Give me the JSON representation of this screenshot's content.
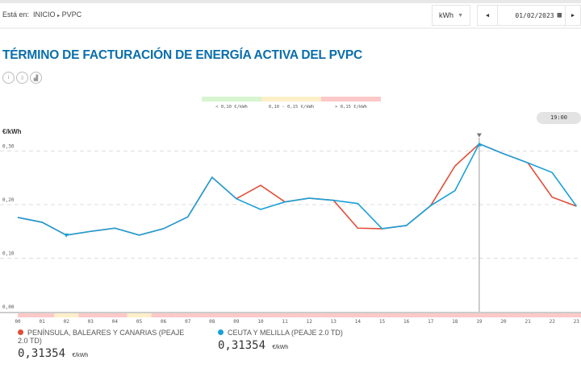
{
  "breadcrumb": {
    "prefix": "Está en:",
    "items": [
      "INICIO",
      "PVPC"
    ],
    "sep": "▸"
  },
  "unit_select": {
    "value": "kWh"
  },
  "date_picker": {
    "value": "01/02/2023"
  },
  "title": "TÉRMINO DE FACTURACIÓN DE ENERGÍA ACTIVA DEL PVPC",
  "color_legend": [
    {
      "label": "< 0,10 €/kWh",
      "color": "#d6f5d0"
    },
    {
      "label": "0,10 - 0,15 €/kWh",
      "color": "#fdefc7"
    },
    {
      "label": "> 0,15 €/kWh",
      "color": "#fcc8c8"
    }
  ],
  "selected_time": "19:00",
  "chart_data": {
    "type": "line",
    "ylabel": "€/kWh",
    "ylim": [
      0,
      0.33
    ],
    "yticks": [
      "0,00",
      "0,10",
      "0,20",
      "0,30"
    ],
    "ytick_values": [
      0,
      0.1,
      0.2,
      0.3
    ],
    "categories": [
      "00",
      "01",
      "02",
      "03",
      "04",
      "05",
      "06",
      "07",
      "08",
      "09",
      "10",
      "11",
      "12",
      "13",
      "14",
      "15",
      "16",
      "17",
      "18",
      "19",
      "20",
      "21",
      "22",
      "23"
    ],
    "band_levels": [
      "high",
      "high",
      "mid",
      "high",
      "high",
      "mid",
      "high",
      "high",
      "high",
      "high",
      "high",
      "high",
      "high",
      "high",
      "high",
      "high",
      "high",
      "high",
      "high",
      "high",
      "high",
      "high",
      "high",
      "high"
    ],
    "band_colors": {
      "low": "#d6f5d0",
      "mid": "#fdefc7",
      "high": "#fcc8c8"
    },
    "series": [
      {
        "name": "PENÍNSULA, BALEARES Y CANARIAS (PEAJE 2.0 TD)",
        "color": "#e04e39",
        "values": [
          0.176,
          0.167,
          0.143,
          0.15,
          0.156,
          0.143,
          0.155,
          0.177,
          0.251,
          0.211,
          0.236,
          0.205,
          0.212,
          0.208,
          0.156,
          0.155,
          0.161,
          0.198,
          0.272,
          0.31354,
          0.295,
          0.278,
          0.214,
          0.197
        ]
      },
      {
        "name": "CEUTA Y MELILLA (PEAJE 2.0 TD)",
        "color": "#1aa0d8",
        "values": [
          0.176,
          0.167,
          0.143,
          0.15,
          0.156,
          0.143,
          0.155,
          0.177,
          0.251,
          0.211,
          0.191,
          0.205,
          0.212,
          0.208,
          0.202,
          0.155,
          0.161,
          0.198,
          0.226,
          0.31354,
          0.295,
          0.278,
          0.26,
          0.197
        ]
      }
    ],
    "selected_index": 19,
    "min_index": 2
  },
  "readouts": [
    {
      "value": "0,31354",
      "unit": "€/kWh"
    },
    {
      "value": "0,31354",
      "unit": "€/kWh"
    }
  ]
}
